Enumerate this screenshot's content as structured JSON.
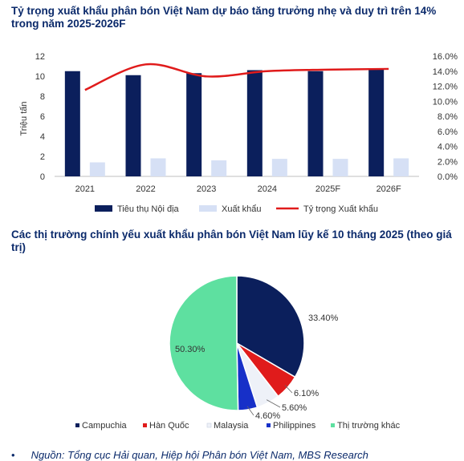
{
  "titles": {
    "chart1": "Tỷ trọng xuất khẩu phân bón Việt Nam dự báo tăng trưởng nhẹ và duy trì trên 14% trong năm 2025-2026F",
    "chart2": "Các thị trường chính yếu xuất khẩu phân bón Việt Nam lũy kế 10 tháng 2025 (theo giá trị)"
  },
  "source": {
    "bullet": "•",
    "text": "Nguồn: Tổng cục Hải quan, Hiệp hội Phân bón Việt Nam, MBS Research"
  },
  "colors": {
    "navy": "#0b1f5c",
    "light_blue": "#d6e0f5",
    "red": "#e01b1b",
    "mint": "#5ee0a0",
    "blue": "#1730c8",
    "white_slice": "#eef1f8"
  },
  "chart_data": [
    {
      "type": "bar",
      "categories": [
        "2021",
        "2022",
        "2023",
        "2024",
        "2025F",
        "2026F"
      ],
      "series": [
        {
          "name": "Tiêu thụ Nội địa",
          "type": "bar",
          "axis": "left",
          "color": "#0b1f5c",
          "values": [
            10.5,
            10.1,
            10.3,
            10.6,
            10.5,
            10.7
          ]
        },
        {
          "name": "Xuất khẩu",
          "type": "bar",
          "axis": "left",
          "color": "#d6e0f5",
          "values": [
            1.4,
            1.8,
            1.6,
            1.75,
            1.75,
            1.8
          ]
        },
        {
          "name": "Tỷ trọng Xuất khẩu",
          "type": "line",
          "axis": "right",
          "color": "#e01b1b",
          "values": [
            11.5,
            14.9,
            13.3,
            14.0,
            14.2,
            14.3
          ]
        }
      ],
      "ylabel": "Triệu tấn",
      "ylim": [
        0,
        12
      ],
      "yticks": [
        "0",
        "2",
        "4",
        "6",
        "8",
        "10",
        "12"
      ],
      "y2lim": [
        0,
        16
      ],
      "y2ticks": [
        "0.0%",
        "2.0%",
        "4.0%",
        "6.0%",
        "8.0%",
        "10.0%",
        "12.0%",
        "14.0%",
        "16.0%"
      ],
      "legend_position": "bottom",
      "grid": false
    },
    {
      "type": "pie",
      "slices": [
        {
          "name": "Campuchia",
          "value": 33.4,
          "label": "33.40%",
          "color": "#0b1f5c"
        },
        {
          "name": "Hàn Quốc",
          "value": 6.1,
          "label": "6.10%",
          "color": "#e01b1b"
        },
        {
          "name": "Malaysia",
          "value": 5.6,
          "label": "5.60%",
          "color": "#eef1f8"
        },
        {
          "name": "Philippines",
          "value": 4.6,
          "label": "4.60%",
          "color": "#1730c8"
        },
        {
          "name": "Thị trường khác",
          "value": 50.3,
          "label": "50.30%",
          "color": "#5ee0a0"
        }
      ],
      "legend_position": "bottom"
    }
  ]
}
